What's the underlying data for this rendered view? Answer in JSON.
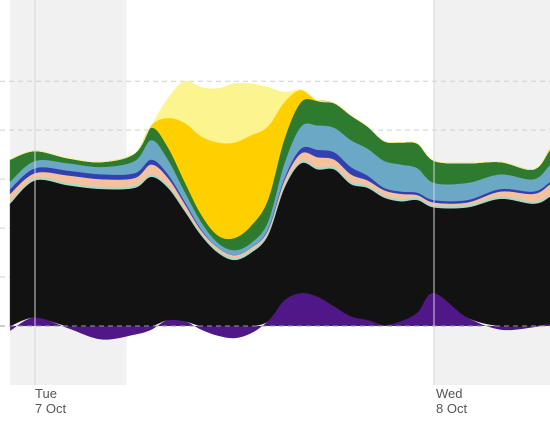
{
  "chart_data": {
    "type": "area",
    "stacked": true,
    "title": "",
    "xlabel": "",
    "ylabel": "",
    "x_tick_labels": [
      {
        "hour": 0,
        "day": "Tue",
        "date": "7 Oct"
      },
      {
        "hour": 24,
        "day": "Wed",
        "date": "8 Oct"
      }
    ],
    "x_hours": [
      -1.5,
      0,
      2,
      4,
      6,
      7,
      8,
      9,
      10,
      11,
      12,
      13,
      14,
      15,
      16,
      17,
      18,
      19,
      20,
      21,
      22,
      23,
      24,
      26,
      28,
      30,
      31,
      32,
      33,
      34
    ],
    "ylim": [
      -1.4,
      12.5
    ],
    "grid": true,
    "night_shading": [
      [
        -1.5,
        5.5
      ],
      [
        24,
        34
      ]
    ],
    "baseline_series": {
      "name": "",
      "color": "#4f1787",
      "values": [
        -0.2,
        0.35,
        -0.1,
        -0.55,
        -0.35,
        -0.15,
        0.25,
        0.2,
        -0.15,
        -0.4,
        -0.5,
        -0.3,
        0.2,
        1.05,
        1.35,
        1.2,
        0.8,
        0.4,
        0.25,
        0.05,
        0.2,
        0.55,
        1.35,
        0.35,
        -0.15,
        -0.05,
        0.1,
        0.2,
        0.1,
        0.1
      ]
    },
    "series": [
      {
        "name": "",
        "color": "#121212",
        "values": [
          5.0,
          5.6,
          5.75,
          5.6,
          5.65,
          6.1,
          5.4,
          4.5,
          3.7,
          3.0,
          2.7,
          3.0,
          3.5,
          4.6,
          5.3,
          5.2,
          5.6,
          5.4,
          5.4,
          5.2,
          4.9,
          4.6,
          3.5,
          4.5,
          5.2,
          5.0,
          5.2,
          5.7,
          5.6,
          5.7
        ]
      },
      {
        "name": "",
        "color": "#a9d8c6",
        "values": [
          0.1,
          0.1,
          0.1,
          0.1,
          0.1,
          0.1,
          0.1,
          0.1,
          0.1,
          0.1,
          0.1,
          0.1,
          0.1,
          0.1,
          0.1,
          0.1,
          0.1,
          0.1,
          0.1,
          0.1,
          0.1,
          0.1,
          0.1,
          0.1,
          0.1,
          0.1,
          0.1,
          0.1,
          0.1,
          0.1
        ]
      },
      {
        "name": "",
        "color": "#f5c29d",
        "values": [
          0.3,
          0.2,
          0.3,
          0.3,
          0.3,
          0.4,
          0.3,
          0.2,
          0.1,
          0.1,
          0.1,
          0.1,
          0.1,
          0.2,
          0.3,
          0.4,
          0.3,
          0.3,
          0.2,
          0.2,
          0.2,
          0.1,
          0.1,
          0.1,
          0.2,
          0.3,
          0.4,
          0.3,
          0.3,
          0.3
        ]
      },
      {
        "name": "",
        "color": "#3340b2",
        "values": [
          0.2,
          0.2,
          0.2,
          0.2,
          0.2,
          0.2,
          0.15,
          0.1,
          0.05,
          0.0,
          0.0,
          0.0,
          0.05,
          0.1,
          0.2,
          0.3,
          0.3,
          0.3,
          0.2,
          0.1,
          0.1,
          0.1,
          0.1,
          0.1,
          0.1,
          0.1,
          0.1,
          0.1,
          0.1,
          0.1
        ]
      },
      {
        "name": "",
        "color": "#6ba8c6",
        "values": [
          0.3,
          0.3,
          0.3,
          0.3,
          0.5,
          0.8,
          0.6,
          0.4,
          0.3,
          0.2,
          0.2,
          0.2,
          0.3,
          0.6,
          0.9,
          1.0,
          1.0,
          1.1,
          1.1,
          1.1,
          1.1,
          1.0,
          0.7,
          0.7,
          0.6,
          0.5,
          0.7,
          0.8,
          0.6,
          0.6
        ]
      },
      {
        "name": "",
        "color": "#2e7a2e",
        "values": [
          0.9,
          0.4,
          0.2,
          0.2,
          0.3,
          0.5,
          0.5,
          0.4,
          0.3,
          0.3,
          0.5,
          0.7,
          0.9,
          1.0,
          1.0,
          1.0,
          1.0,
          1.0,
          0.9,
          0.8,
          0.9,
          1.0,
          0.9,
          0.8,
          0.5,
          0.4,
          0.6,
          0.8,
          0.9,
          0.9
        ]
      },
      {
        "name": "",
        "color": "#ffd000",
        "values": [
          0.0,
          0.0,
          0.0,
          0.0,
          0.0,
          0.1,
          1.2,
          2.4,
          3.2,
          3.8,
          3.9,
          3.7,
          3.0,
          1.5,
          0.5,
          0.0,
          0.0,
          0.0,
          0.0,
          0.0,
          0.0,
          0.0,
          0.0,
          0.0,
          0.0,
          0.0,
          0.1,
          0.5,
          0.8,
          0.5
        ]
      },
      {
        "name": "",
        "color": "#fbf48f",
        "values": [
          0.0,
          0.0,
          0.0,
          0.0,
          0.0,
          0.0,
          0.8,
          1.7,
          2.0,
          2.2,
          2.4,
          2.1,
          1.6,
          0.4,
          0.0,
          0.0,
          0.0,
          0.0,
          0.0,
          0.0,
          0.0,
          0.0,
          0.0,
          0.0,
          0.0,
          0.0,
          0.0,
          0.2,
          0.3,
          0.2
        ]
      }
    ]
  }
}
